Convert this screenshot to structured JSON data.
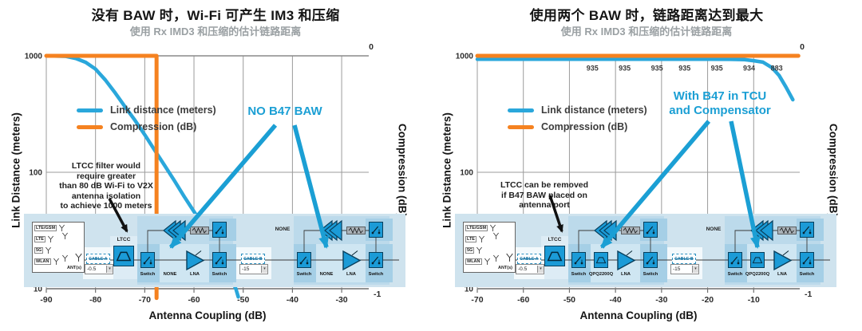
{
  "chart_data": [
    {
      "type": "line",
      "title": "没有 BAW 时，Wi-Fi 可产生 IM3 和压缩",
      "subtitle": "使用 Rx IMD3 和压缩的估计链路距离",
      "xlabel": "Antenna Coupling (dB)",
      "ylabel_left": "Link Distance (meters)",
      "ylabel_right": "Compression (dB)",
      "x_range": [
        -90,
        -24.5
      ],
      "x_ticks": [
        -90,
        -80,
        -70,
        -60,
        -50,
        -40,
        -30
      ],
      "y_left_scale": "log",
      "y_left_ticks": [
        1000,
        100,
        10
      ],
      "y_right_top_label": "0",
      "y_right_bottom_label": "-1",
      "grid": true,
      "legend_position": "upper-left-inside",
      "legend": [
        {
          "label": "Link distance (meters)",
          "color": "#2aa7db"
        },
        {
          "label": "Compression (dB)",
          "color": "#f58220"
        }
      ],
      "series": [
        {
          "name": "Link distance (meters)",
          "axis": "left",
          "color": "#2aa7db",
          "points": [
            [
              -90,
              1000
            ],
            [
              -86,
              990
            ],
            [
              -84,
              950
            ],
            [
              -82,
              880
            ],
            [
              -80,
              770
            ],
            [
              -78,
              620
            ],
            [
              -76,
              480
            ],
            [
              -74,
              365
            ],
            [
              -72,
              280
            ],
            [
              -70,
              210
            ],
            [
              -68,
              155
            ],
            [
              -66,
              115
            ],
            [
              -64,
              85
            ],
            [
              -62,
              62
            ],
            [
              -60,
              46
            ],
            [
              -58,
              34
            ],
            [
              -56,
              24
            ],
            [
              -54,
              16.5
            ],
            [
              -51.5,
              10
            ],
            [
              -51,
              8.5
            ]
          ]
        },
        {
          "name": "Compression (dB)",
          "axis": "right",
          "color": "#f58220",
          "points": [
            [
              -90,
              0
            ],
            [
              -67.6,
              0
            ],
            [
              -67.6,
              -1.04
            ]
          ]
        }
      ],
      "data_labels": [],
      "callout": [
        "NO B47 BAW"
      ],
      "note": [
        "LTCC filter would",
        "require greater",
        "than 80 dB Wi-Fi to V2X",
        "antenna isolation",
        "to achieve 1000 meters"
      ],
      "diagram": {
        "antennas": [
          "LTE/GSM",
          "LTE",
          "5G",
          "WLAN"
        ],
        "ant_label": "ANT(s)",
        "cable_a_label": "CABLE A",
        "cable_a_value": "-0.5",
        "cable_b_label": "CABLE B",
        "cable_b_value": "-15",
        "input_filter_label": "LTCC",
        "mid_label": "NONE",
        "chain1": [
          "Switch",
          "NONE",
          "LNA",
          "Switch"
        ],
        "chain2": [
          "Switch",
          "NONE",
          "LNA",
          "Switch"
        ],
        "slot_filled": false
      }
    },
    {
      "type": "line",
      "title": "使用两个 BAW 时，链路距离达到最大",
      "subtitle": "使用 Rx IMD3 和压缩的估计链路距离",
      "xlabel": "Antenna Coupling (dB)",
      "ylabel_left": "Link Distance (meters)",
      "ylabel_right": "Compression (dB)",
      "x_range": [
        -70,
        0
      ],
      "x_ticks": [
        -70,
        -60,
        -50,
        -40,
        -30,
        -20,
        -10
      ],
      "y_left_scale": "log",
      "y_left_ticks": [
        1000,
        100,
        10
      ],
      "y_right_top_label": "0",
      "y_right_bottom_label": "-1",
      "grid": true,
      "legend_position": "upper-left-inside",
      "legend": [
        {
          "label": "Link distance (meters)",
          "color": "#2aa7db"
        },
        {
          "label": "Compression (dB)",
          "color": "#f58220"
        }
      ],
      "series": [
        {
          "name": "Link distance (meters)",
          "axis": "left",
          "color": "#2aa7db",
          "points": [
            [
              -70,
              935
            ],
            [
              -60,
              935
            ],
            [
              -50,
              935
            ],
            [
              -40,
              935
            ],
            [
              -30,
              935
            ],
            [
              -20,
              935
            ],
            [
              -15,
              934
            ],
            [
              -12,
              928
            ],
            [
              -10,
              908
            ],
            [
              -8,
              883
            ],
            [
              -6,
              790
            ],
            [
              -4.5,
              680
            ],
            [
              -3,
              540
            ],
            [
              -1.5,
              420
            ]
          ]
        },
        {
          "name": "Compression (dB)",
          "axis": "right",
          "color": "#f58220",
          "points": [
            [
              -70,
              0
            ],
            [
              -0.3,
              0
            ]
          ]
        }
      ],
      "data_labels": [
        {
          "x": -45,
          "label": "935"
        },
        {
          "x": -38,
          "label": "935"
        },
        {
          "x": -31,
          "label": "935"
        },
        {
          "x": -25,
          "label": "935"
        },
        {
          "x": -18,
          "label": "935"
        },
        {
          "x": -11,
          "label": "934"
        },
        {
          "x": -5,
          "label": "883"
        }
      ],
      "callout": [
        "With B47 in TCU",
        "and Compensator"
      ],
      "note": [
        "LTCC can be removed",
        "if B47 BAW placed on",
        "antenna port"
      ],
      "diagram": {
        "antennas": [
          "LTE/GSM",
          "LTE",
          "5G",
          "WLAN"
        ],
        "ant_label": "ANT(s)",
        "cable_a_label": "CABLE A",
        "cable_a_value": "-0.5",
        "cable_b_label": "CABLE B",
        "cable_b_value": "-15",
        "input_filter_label": "LTCC",
        "mid_label": "NONE",
        "chain1": [
          "Switch",
          "QPQ2200Q",
          "LNA",
          "Switch"
        ],
        "chain2": [
          "Switch",
          "QPQ2200Q",
          "LNA",
          "Switch"
        ],
        "slot_filled": true
      }
    }
  ]
}
